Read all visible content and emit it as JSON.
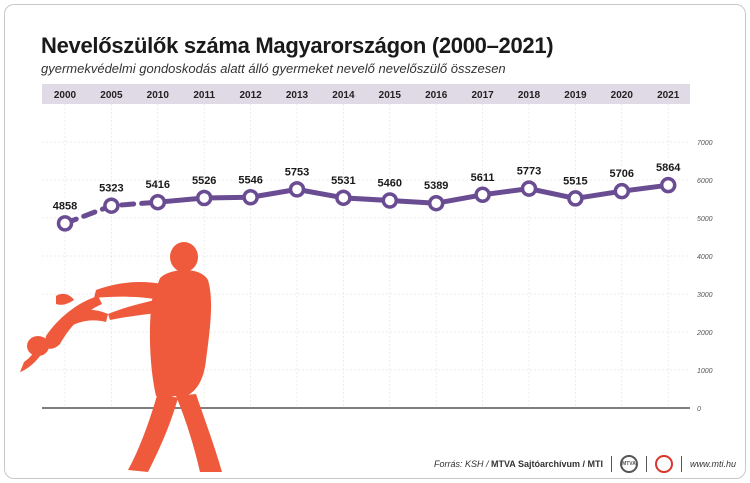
{
  "title": "Nevelőszülők száma Magyarországon (2000–2021)",
  "subtitle": "gyermekvédelmi gondoskodás alatt álló gyermeket nevelő nevelőszülő összesen",
  "colors": {
    "line": "#6a4c93",
    "header_band": "#e0d9e6",
    "silhouette": "#f05a3c"
  },
  "chart_data": {
    "type": "line",
    "title": "Nevelőszülők száma Magyarországon (2000–2021)",
    "subtitle": "gyermekvédelmi gondoskodás alatt álló gyermeket nevelő nevelőszülő összesen",
    "x": [
      "2000",
      "2005",
      "2010",
      "2011",
      "2012",
      "2013",
      "2014",
      "2015",
      "2016",
      "2017",
      "2018",
      "2019",
      "2020",
      "2021"
    ],
    "values": [
      4858,
      5323,
      5416,
      5526,
      5546,
      5753,
      5531,
      5460,
      5389,
      5611,
      5773,
      5515,
      5706,
      5864
    ],
    "dashed_until_index": 2,
    "ylim": [
      0,
      7000
    ],
    "yticks": [
      0,
      1000,
      2000,
      3000,
      4000,
      5000,
      6000,
      7000
    ],
    "grid": true,
    "legend": "none"
  },
  "footer": {
    "source_prefix": "Forrás: KSH / ",
    "source_bold": "MTVA Sajtóarchívum / MTI",
    "logo1": "MTVA",
    "site": "www.mti.hu"
  },
  "icons": [
    "parent-child-silhouette-icon",
    "mtva-logo-icon",
    "mti-logo-icon"
  ]
}
